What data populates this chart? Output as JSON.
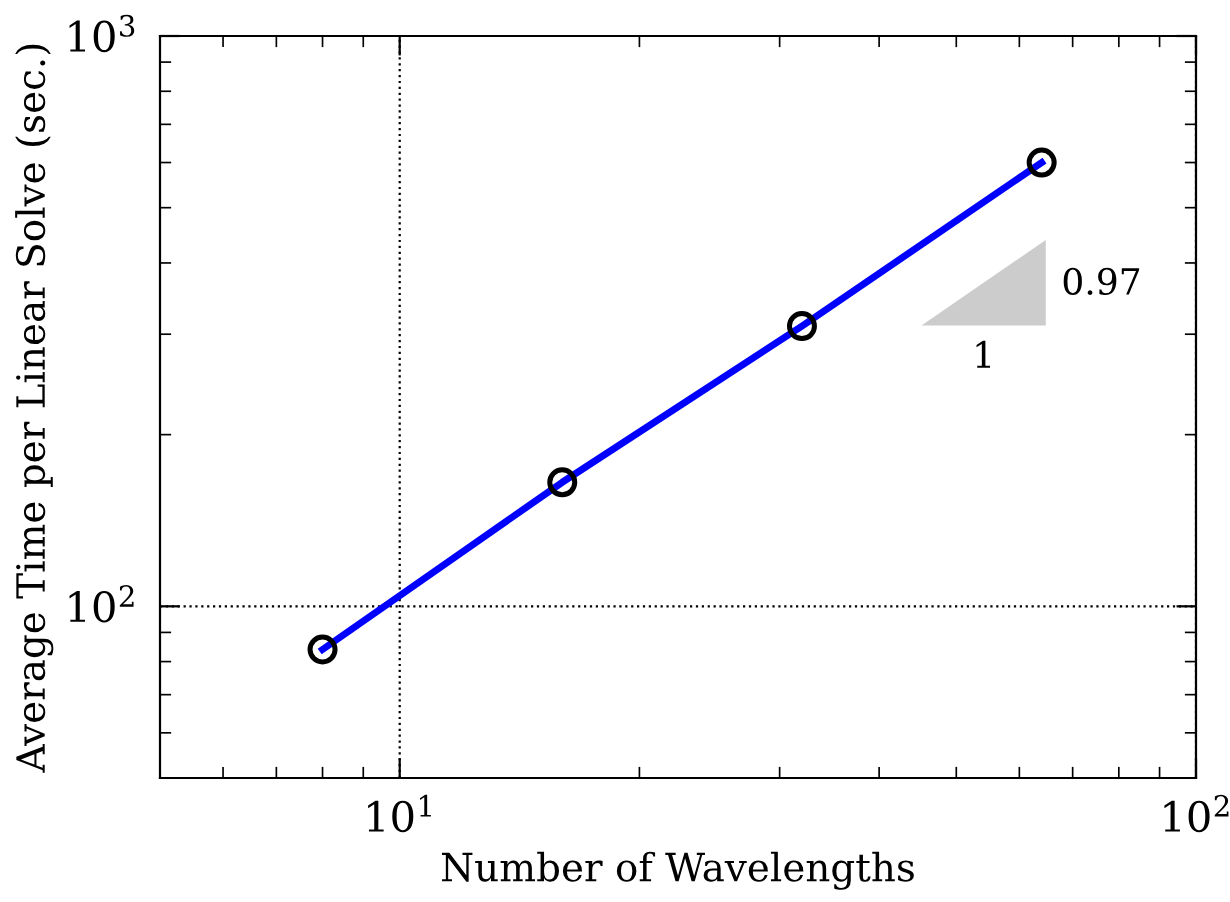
{
  "chart_data": {
    "type": "line",
    "xlabel": "Number of Wavelengths",
    "ylabel": "Average Time per Linear Solve (sec.)",
    "x": [
      8,
      16,
      32,
      64
    ],
    "series": [
      {
        "color": "#0000ff",
        "values": [
          84,
          165,
          310,
          600
        ]
      }
    ],
    "marker": "circle",
    "line_style": "solid",
    "log": "xy",
    "grid": true,
    "xlim": [
      5,
      100
    ],
    "ylim": [
      50,
      1000
    ],
    "xticks": [
      {
        "value": 10,
        "label": "10$^{1}$"
      },
      {
        "value": 100,
        "label": "10$^{2}$"
      }
    ],
    "yticks": [
      {
        "value": 100,
        "label": "10$^{2}$"
      },
      {
        "value": 1000,
        "label": "10$^{3}$"
      }
    ],
    "annotations": [
      "0.97",
      "1"
    ]
  }
}
